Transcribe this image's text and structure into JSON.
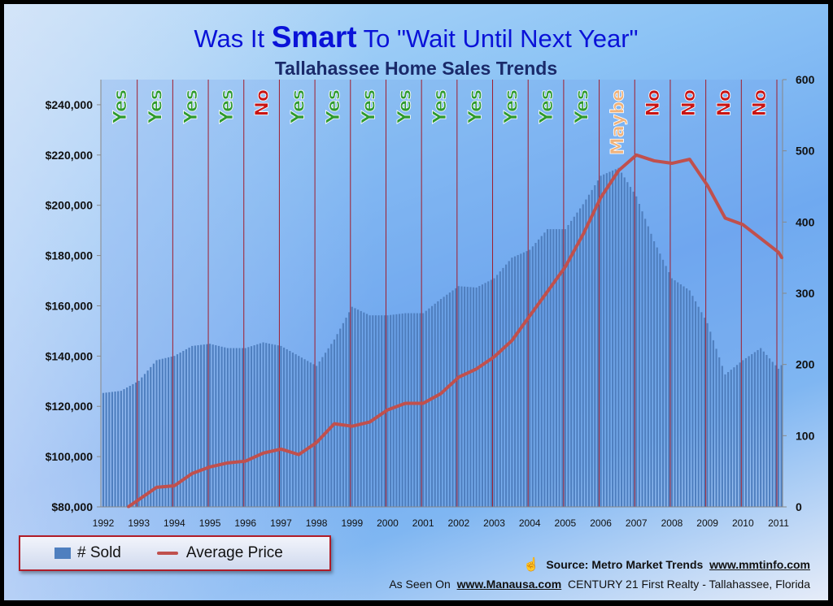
{
  "chart_data": {
    "type": "bar+line",
    "title_parts": [
      "Was It ",
      "Smart",
      " To \"Wait Until Next Year\""
    ],
    "subtitle": "Tallahassee Home Sales Trends",
    "x_ticks": [
      "1992",
      "1993",
      "1994",
      "1995",
      "1996",
      "1997",
      "1998",
      "1999",
      "2000",
      "2001",
      "2002",
      "2003",
      "2004",
      "2005",
      "2006",
      "2007",
      "2008",
      "2009",
      "2010",
      "2011"
    ],
    "left_axis": {
      "label": "Average Price",
      "range": [
        80000,
        250000
      ],
      "ticks": [
        "$80,000",
        "$100,000",
        "$120,000",
        "$140,000",
        "$160,000",
        "$180,000",
        "$200,000",
        "$220,000",
        "$240,000"
      ],
      "tick_values": [
        80000,
        100000,
        120000,
        140000,
        160000,
        180000,
        200000,
        220000,
        240000
      ]
    },
    "right_axis": {
      "label": "# Sold",
      "range": [
        0,
        600
      ],
      "ticks": [
        "0",
        "100",
        "200",
        "300",
        "400",
        "500",
        "600"
      ],
      "tick_values": [
        0,
        100,
        200,
        300,
        400,
        500,
        600
      ]
    },
    "x_range": [
      1992,
      2011.15
    ],
    "grid": "vertical red year lines",
    "legend_placement": "bottom-left",
    "verdicts": [
      "Yes",
      "Yes",
      "Yes",
      "Yes",
      "No",
      "Yes",
      "Yes",
      "Yes",
      "Yes",
      "Yes",
      "Yes",
      "Yes",
      "Yes",
      "Yes",
      "Maybe",
      "No",
      "No",
      "No",
      "No"
    ],
    "verdict_colors": {
      "Yes": "#2e9a2e",
      "No": "#c81414",
      "Maybe": "#f0b27a"
    },
    "series": [
      {
        "name": "# Sold",
        "type": "bar",
        "axis": "right",
        "color": "#4f7fbf",
        "x": [
          1992,
          1992.5,
          1993,
          1993.5,
          1994,
          1994.5,
          1995,
          1995.5,
          1996,
          1996.5,
          1997,
          1997.5,
          1998,
          1998.5,
          1999,
          1999.5,
          2000,
          2000.5,
          2001,
          2001.5,
          2002,
          2002.5,
          2003,
          2003.5,
          2004,
          2004.5,
          2005,
          2005.5,
          2006,
          2006.5,
          2007,
          2007.5,
          2008,
          2008.5,
          2009,
          2009.5,
          2010,
          2010.5,
          2011,
          2011.1
        ],
        "values": [
          160,
          163,
          177,
          206,
          212,
          226,
          229,
          223,
          223,
          231,
          226,
          212,
          198,
          235,
          281,
          269,
          269,
          272,
          272,
          292,
          310,
          308,
          321,
          350,
          361,
          390,
          390,
          425,
          465,
          476,
          436,
          373,
          321,
          304,
          258,
          186,
          206,
          223,
          194,
          200
        ]
      },
      {
        "name": "Average Price",
        "type": "line",
        "axis": "left",
        "color": "#c0504d",
        "x": [
          1992.7,
          1993,
          1993.5,
          1994,
          1994.5,
          1995,
          1995.5,
          1996,
          1996.5,
          1997,
          1997.5,
          1998,
          1998.5,
          1999,
          1999.5,
          2000,
          2000.5,
          2001,
          2001.5,
          2002,
          2002.5,
          2003,
          2003.5,
          2004,
          2004.5,
          2005,
          2005.5,
          2006,
          2006.5,
          2007,
          2007.5,
          2008,
          2008.5,
          2009,
          2009.5,
          2010,
          2010.5,
          2011,
          2011.1
        ],
        "values": [
          80000,
          82900,
          87800,
          88400,
          93300,
          95900,
          97500,
          98200,
          101400,
          103000,
          100800,
          105600,
          113100,
          112100,
          113800,
          118600,
          121200,
          121200,
          125100,
          131600,
          134900,
          139700,
          146200,
          156000,
          165700,
          175500,
          188400,
          203100,
          213800,
          220000,
          217700,
          216700,
          218300,
          207900,
          194900,
          192300,
          186800,
          181300,
          179000
        ]
      }
    ]
  },
  "legend": {
    "sold": "# Sold",
    "price": "Average Price"
  },
  "footer": {
    "source_label": "Source:  Metro Market Trends",
    "source_link": "www.mmtinfo.com",
    "as_seen_on": "As Seen On",
    "manausa_link": "www.Manausa.com",
    "company": "CENTURY 21 First Realty - Tallahassee, Florida"
  }
}
